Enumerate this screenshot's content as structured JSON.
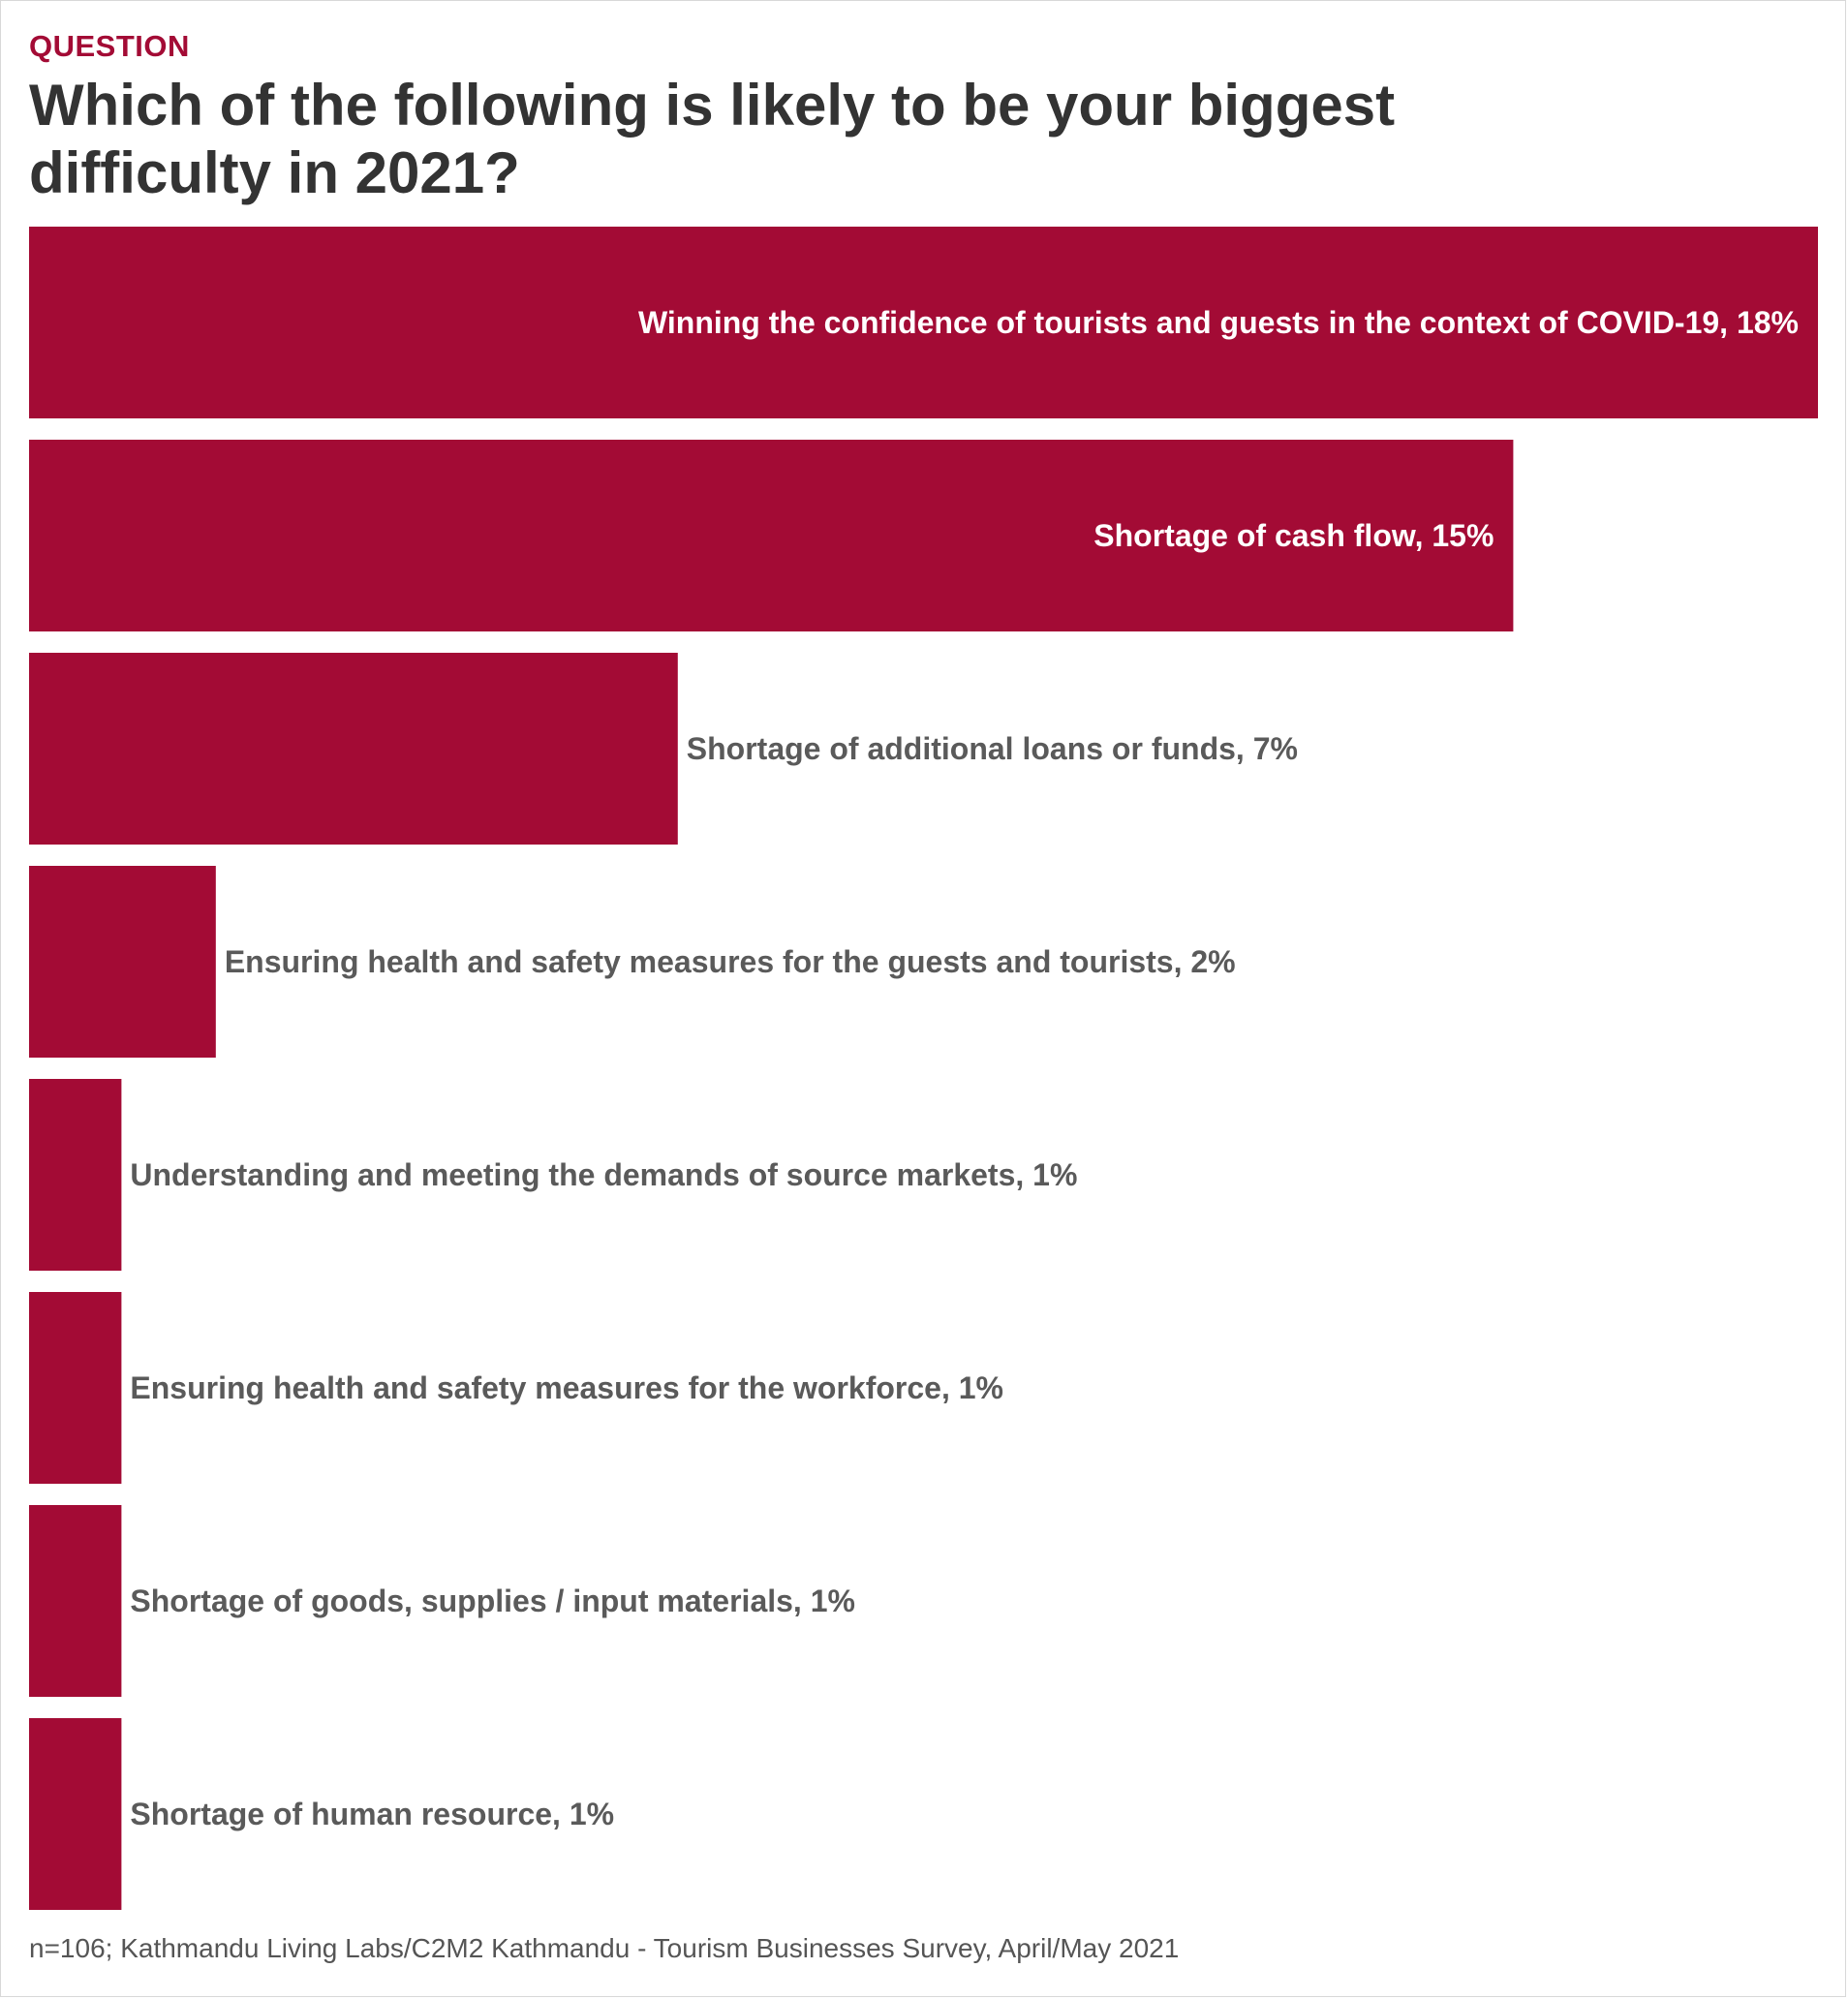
{
  "header": {
    "kicker": "QUESTION",
    "title": "Which of the following is likely to be your biggest difficulty in 2021?"
  },
  "colors": {
    "bar": "#a30b35",
    "kicker": "#a30b35",
    "label_inside": "#ffffff",
    "label_outside": "#5a5a5a"
  },
  "chart_data": {
    "type": "bar",
    "orientation": "horizontal",
    "title": "Which of the following is likely to be your biggest difficulty in 2021?",
    "xlabel": "",
    "ylabel": "",
    "xlim": [
      0,
      18
    ],
    "grid": false,
    "categories": [
      "Winning the confidence of tourists and guests in the context of COVID-19",
      "Shortage of cash flow",
      "Shortage of additional loans or funds",
      "Ensuring health and safety measures for the guests and tourists",
      "Understanding and meeting the demands of source markets",
      "Ensuring health and safety measures for the workforce",
      "Shortage of goods, supplies / input materials",
      "Shortage of human resource"
    ],
    "values": [
      18,
      15,
      7,
      2,
      1,
      1,
      1,
      1
    ],
    "display_values": [
      18.2,
      15.1,
      6.6,
      1.9,
      0.94,
      0.94,
      0.94,
      0.94
    ],
    "data_labels": [
      "Winning the confidence of tourists and guests in the context of COVID-19, 18%",
      "Shortage of cash flow, 15%",
      "Shortage of additional loans or funds, 7%",
      "Ensuring health and safety measures for the guests and tourists, 2%",
      "Understanding and meeting the demands of source markets, 1%",
      "Ensuring health and safety measures for the workforce, 1%",
      "Shortage of goods, supplies / input materials, 1%",
      "Shortage of human resource, 1%"
    ]
  },
  "footer": {
    "source": "n=106; Kathmandu Living Labs/C2M2 Kathmandu - Tourism Businesses Survey, April/May 2021"
  }
}
